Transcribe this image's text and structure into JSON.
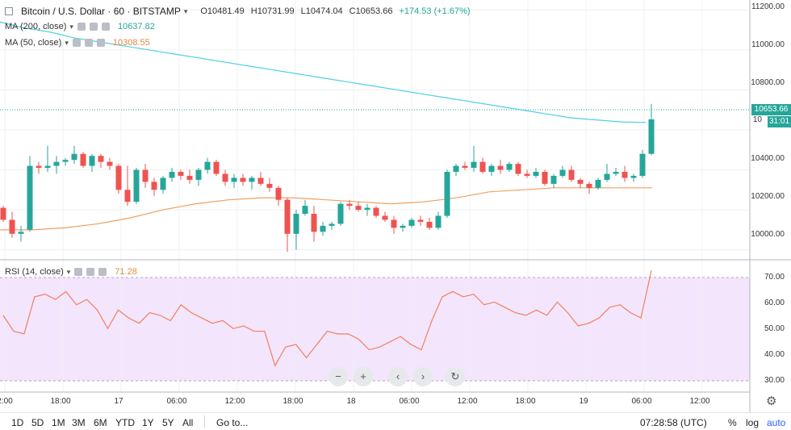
{
  "header": {
    "symbol_title": "Bitcoin / U.S. Dollar · 60 · BITSTAMP",
    "open": "O10481.49",
    "high": "H10731.99",
    "low": "L10474.04",
    "close": "C10653.66",
    "change": "+174.53 (+1.67%)"
  },
  "indicators": {
    "ma200": {
      "label": "MA (200, close)",
      "value": "10637.82",
      "color": "#4dd0e1"
    },
    "ma50": {
      "label": "MA (50, close)",
      "value": "10308.55",
      "color": "#f0a060"
    },
    "rsi": {
      "label": "RSI (14, close)",
      "value": "71.28",
      "color": "#f0a060"
    }
  },
  "price_axis": [
    "11200.00",
    "11000.00",
    "10800.00",
    "10400.00",
    "10200.00",
    "10000.00"
  ],
  "price_axis_partial": "10",
  "price_tag": {
    "value": "10653.66",
    "countdown": "31:01"
  },
  "rsi_axis": [
    "70.00",
    "60.00",
    "50.00",
    "40.00",
    "30.00"
  ],
  "time_axis": [
    "2:00",
    "18:00",
    "17",
    "06:00",
    "12:00",
    "18:00",
    "18",
    "06:00",
    "12:00",
    "18:00",
    "19",
    "06:00",
    "12:00"
  ],
  "nav_buttons": {
    "zoom_out": "−",
    "zoom_in": "+",
    "back": "‹",
    "forward": "›",
    "reset": "↻"
  },
  "ranges": [
    "1D",
    "5D",
    "1M",
    "3M",
    "6M",
    "YTD",
    "1Y",
    "5Y",
    "All"
  ],
  "goto_label": "Go to...",
  "status": {
    "clock": "07:28:58 (UTC)",
    "percent": "%",
    "log": "log",
    "auto": "auto"
  },
  "colors": {
    "up": "#26a69a",
    "down": "#ef5350",
    "rsi_bg": "#f3e5fb",
    "accent": "#2962ff"
  },
  "chart_data": {
    "type": "candlestick",
    "title": "Bitcoin / U.S. Dollar · 60 · BITSTAMP",
    "price_range": [
      9950,
      11250
    ],
    "rsi_range": [
      25,
      75
    ],
    "candles": [
      [
        10210,
        10220,
        10140,
        10150
      ],
      [
        10150,
        10190,
        10060,
        10080
      ],
      [
        10080,
        10120,
        10040,
        10090
      ],
      [
        10100,
        10470,
        10090,
        10420
      ],
      [
        10420,
        10440,
        10380,
        10410
      ],
      [
        10410,
        10520,
        10390,
        10420
      ],
      [
        10420,
        10470,
        10380,
        10440
      ],
      [
        10440,
        10460,
        10420,
        10450
      ],
      [
        10450,
        10520,
        10430,
        10480
      ],
      [
        10480,
        10490,
        10410,
        10420
      ],
      [
        10420,
        10480,
        10390,
        10470
      ],
      [
        10470,
        10480,
        10410,
        10440
      ],
      [
        10440,
        10460,
        10400,
        10420
      ],
      [
        10420,
        10430,
        10280,
        10300
      ],
      [
        10300,
        10420,
        10220,
        10240
      ],
      [
        10240,
        10410,
        10230,
        10400
      ],
      [
        10400,
        10430,
        10310,
        10340
      ],
      [
        10340,
        10360,
        10270,
        10300
      ],
      [
        10300,
        10370,
        10280,
        10360
      ],
      [
        10360,
        10410,
        10340,
        10390
      ],
      [
        10390,
        10400,
        10350,
        10370
      ],
      [
        10370,
        10400,
        10330,
        10350
      ],
      [
        10350,
        10410,
        10320,
        10400
      ],
      [
        10400,
        10460,
        10380,
        10440
      ],
      [
        10440,
        10450,
        10370,
        10380
      ],
      [
        10380,
        10400,
        10320,
        10340
      ],
      [
        10340,
        10380,
        10310,
        10360
      ],
      [
        10360,
        10380,
        10320,
        10340
      ],
      [
        10340,
        10370,
        10300,
        10360
      ],
      [
        10360,
        10390,
        10320,
        10330
      ],
      [
        10330,
        10360,
        10290,
        10310
      ],
      [
        10310,
        10320,
        10220,
        10250
      ],
      [
        10250,
        10260,
        9990,
        10080
      ],
      [
        10080,
        10200,
        10000,
        10180
      ],
      [
        10180,
        10250,
        10170,
        10220
      ],
      [
        10180,
        10220,
        10040,
        10090
      ],
      [
        10090,
        10140,
        10070,
        10120
      ],
      [
        10120,
        10140,
        10100,
        10130
      ],
      [
        10130,
        10240,
        10120,
        10230
      ],
      [
        10230,
        10250,
        10200,
        10220
      ],
      [
        10220,
        10240,
        10190,
        10200
      ],
      [
        10200,
        10230,
        10170,
        10210
      ],
      [
        10210,
        10220,
        10160,
        10170
      ],
      [
        10170,
        10190,
        10140,
        10150
      ],
      [
        10150,
        10170,
        10080,
        10110
      ],
      [
        10110,
        10130,
        10090,
        10120
      ],
      [
        10120,
        10160,
        10110,
        10150
      ],
      [
        10150,
        10170,
        10120,
        10140
      ],
      [
        10140,
        10160,
        10100,
        10110
      ],
      [
        10110,
        10190,
        10100,
        10170
      ],
      [
        10170,
        10400,
        10160,
        10390
      ],
      [
        10390,
        10430,
        10370,
        10420
      ],
      [
        10420,
        10440,
        10400,
        10410
      ],
      [
        10410,
        10520,
        10390,
        10440
      ],
      [
        10440,
        10460,
        10380,
        10390
      ],
      [
        10390,
        10430,
        10370,
        10420
      ],
      [
        10420,
        10450,
        10380,
        10400
      ],
      [
        10400,
        10440,
        10390,
        10430
      ],
      [
        10430,
        10440,
        10370,
        10380
      ],
      [
        10380,
        10400,
        10360,
        10370
      ],
      [
        10370,
        10410,
        10360,
        10390
      ],
      [
        10390,
        10400,
        10320,
        10330
      ],
      [
        10330,
        10380,
        10310,
        10370
      ],
      [
        10370,
        10420,
        10360,
        10400
      ],
      [
        10400,
        10420,
        10340,
        10350
      ],
      [
        10350,
        10360,
        10310,
        10330
      ],
      [
        10330,
        10340,
        10280,
        10310
      ],
      [
        10310,
        10360,
        10300,
        10350
      ],
      [
        10350,
        10430,
        10340,
        10380
      ],
      [
        10380,
        10410,
        10370,
        10390
      ],
      [
        10390,
        10420,
        10340,
        10360
      ],
      [
        10360,
        10380,
        10340,
        10370
      ],
      [
        10370,
        10500,
        10360,
        10480
      ],
      [
        10480,
        10730,
        10474,
        10653
      ]
    ],
    "ma200": [
      11140,
      11110,
      11090,
      11060,
      11040,
      11020,
      11000,
      10980,
      10960,
      10940,
      10920,
      10900,
      10880,
      10860,
      10840,
      10820,
      10800,
      10780,
      10760,
      10740,
      10720,
      10700,
      10680,
      10660,
      10650,
      10640,
      10637
    ],
    "ma50": [
      10100,
      10100,
      10110,
      10130,
      10160,
      10200,
      10230,
      10250,
      10260,
      10260,
      10250,
      10240,
      10230,
      10240,
      10260,
      10290,
      10300,
      10310,
      10310,
      10310,
      10310
    ],
    "rsi": [
      54,
      48,
      47,
      61,
      62,
      60,
      63,
      58,
      60,
      56,
      49,
      56,
      53,
      51,
      55,
      54,
      52,
      58,
      55,
      53,
      51,
      52,
      49,
      50,
      48,
      48,
      35,
      42,
      43,
      38,
      43,
      48,
      47,
      47,
      45,
      41,
      42,
      44,
      46,
      43,
      41,
      52,
      61,
      63,
      61,
      62,
      58,
      59,
      57,
      55,
      54,
      56,
      54,
      59,
      55,
      50,
      51,
      53,
      57,
      58,
      55,
      53,
      71
    ]
  }
}
